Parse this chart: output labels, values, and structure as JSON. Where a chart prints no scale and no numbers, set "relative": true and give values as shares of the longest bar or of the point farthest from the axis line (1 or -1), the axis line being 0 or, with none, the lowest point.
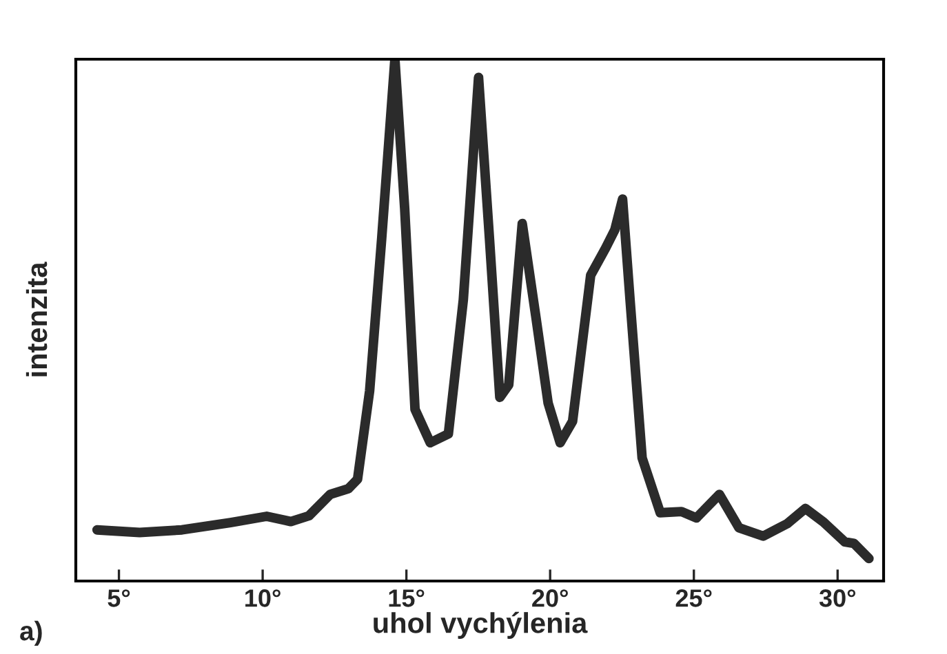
{
  "chart_data": {
    "type": "line",
    "relative": true,
    "xlabel": "uhol vychýlenia",
    "ylabel": "intenzita",
    "annotations": [
      "a)"
    ],
    "xlim": [
      3.5,
      31.6
    ],
    "xticks": [
      {
        "value": 5,
        "label": "5°"
      },
      {
        "value": 10,
        "label": "10°"
      },
      {
        "value": 15,
        "label": "15°"
      },
      {
        "value": 20,
        "label": "20°"
      },
      {
        "value": 25,
        "label": "25°"
      },
      {
        "value": 30,
        "label": "30°"
      }
    ],
    "grid": false,
    "legend": false,
    "marker": "none",
    "line_style": "solid",
    "series": [
      {
        "color": "#2b2b2b",
        "x": [
          4.24,
          5.72,
          7.19,
          8.88,
          10.14,
          10.98,
          11.61,
          12.35,
          12.98,
          13.3,
          13.72,
          14.14,
          14.6,
          14.94,
          15.3,
          15.83,
          16.46,
          16.98,
          17.51,
          17.89,
          18.25,
          18.56,
          19.03,
          19.51,
          19.93,
          20.35,
          20.78,
          21.41,
          21.93,
          22.25,
          22.52,
          22.78,
          23.2,
          23.83,
          24.57,
          25.09,
          25.89,
          26.57,
          27.41,
          28.25,
          28.88,
          29.51,
          30.25,
          30.57,
          31.09
        ],
        "values": [
          0.098,
          0.093,
          0.098,
          0.112,
          0.124,
          0.114,
          0.125,
          0.166,
          0.177,
          0.195,
          0.364,
          0.656,
          1,
          0.714,
          0.329,
          0.265,
          0.282,
          0.539,
          0.965,
          0.656,
          0.352,
          0.376,
          0.685,
          0.504,
          0.341,
          0.265,
          0.306,
          0.586,
          0.638,
          0.673,
          0.732,
          0.539,
          0.236,
          0.131,
          0.133,
          0.121,
          0.166,
          0.102,
          0.086,
          0.11,
          0.139,
          0.113,
          0.075,
          0.072,
          0.043
        ]
      }
    ]
  }
}
